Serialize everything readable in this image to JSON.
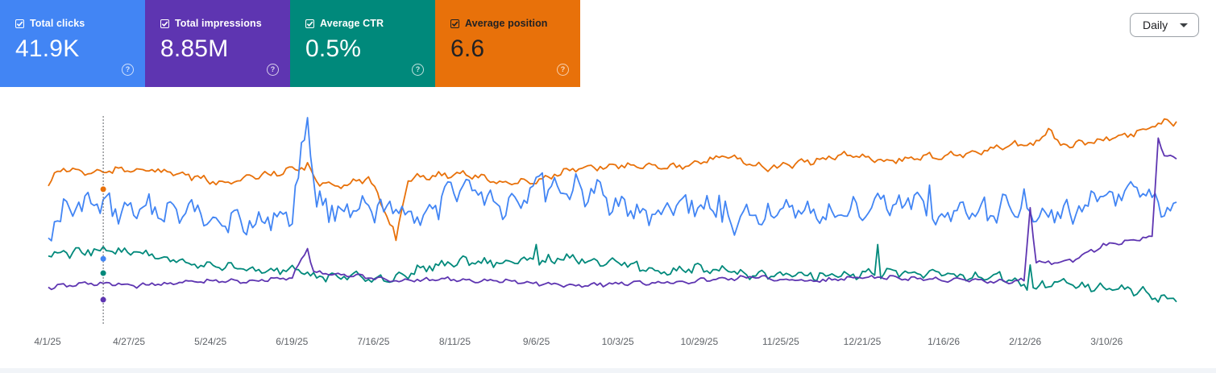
{
  "metrics": [
    {
      "label": "Total clicks",
      "value": "41.9K",
      "color": "#4285f4",
      "checked": true
    },
    {
      "label": "Total impressions",
      "value": "8.85M",
      "color": "#5e35b1",
      "checked": true
    },
    {
      "label": "Average CTR",
      "value": "0.5%",
      "color": "#00897b",
      "checked": true
    },
    {
      "label": "Average position",
      "value": "6.6",
      "color": "#e8710a",
      "checked": true
    }
  ],
  "help_glyph": "?",
  "period_dropdown": {
    "selected": "Daily"
  },
  "chart_data": {
    "type": "line",
    "x_tick_labels": [
      "4/1/25",
      "4/27/25",
      "5/24/25",
      "6/19/25",
      "7/16/25",
      "8/11/25",
      "9/6/25",
      "10/3/25",
      "10/29/25",
      "11/25/25",
      "12/21/25",
      "1/16/26",
      "2/12/26",
      "3/10/26"
    ],
    "x_range": [
      "4/1/25",
      "4/6/26"
    ],
    "hover_date": "4/14/25",
    "grid": false,
    "axes_labels_visible": false,
    "series": [
      {
        "name": "Total clicks",
        "color": "#4285f4",
        "anchors": [
          [
            0,
            0.55
          ],
          [
            6,
            0.45
          ],
          [
            14,
            0.42
          ],
          [
            25,
            0.46
          ],
          [
            35,
            0.45
          ],
          [
            50,
            0.47
          ],
          [
            65,
            0.52
          ],
          [
            80,
            0.47
          ],
          [
            85,
            0.0
          ],
          [
            88,
            0.42
          ],
          [
            100,
            0.47
          ],
          [
            110,
            0.45
          ],
          [
            125,
            0.48
          ],
          [
            135,
            0.32
          ],
          [
            150,
            0.43
          ],
          [
            160,
            0.33
          ],
          [
            170,
            0.35
          ],
          [
            182,
            0.38
          ],
          [
            192,
            0.46
          ],
          [
            200,
            0.48
          ],
          [
            210,
            0.42
          ],
          [
            225,
            0.5
          ],
          [
            236,
            0.47
          ],
          [
            245,
            0.45
          ],
          [
            255,
            0.48
          ],
          [
            270,
            0.45
          ],
          [
            283,
            0.4
          ],
          [
            290,
            0.5
          ],
          [
            300,
            0.47
          ],
          [
            315,
            0.45
          ],
          [
            320,
            0.42
          ],
          [
            330,
            0.48
          ],
          [
            345,
            0.4
          ],
          [
            360,
            0.38
          ],
          [
            370,
            0.47
          ]
        ],
        "spikes": [
          [
            85,
            0.0
          ],
          [
            133,
            0.37
          ],
          [
            162,
            0.27
          ],
          [
            220,
            0.38
          ],
          [
            274,
            0.38
          ],
          [
            289,
            0.33
          ],
          [
            336,
            0.52
          ]
        ]
      },
      {
        "name": "Total impressions",
        "color": "#5e35b1",
        "anchors": [
          [
            0,
            0.83
          ],
          [
            14,
            0.81
          ],
          [
            30,
            0.82
          ],
          [
            50,
            0.8
          ],
          [
            65,
            0.8
          ],
          [
            80,
            0.78
          ],
          [
            85,
            0.64
          ],
          [
            87,
            0.76
          ],
          [
            100,
            0.77
          ],
          [
            115,
            0.8
          ],
          [
            130,
            0.79
          ],
          [
            150,
            0.8
          ],
          [
            170,
            0.82
          ],
          [
            190,
            0.81
          ],
          [
            210,
            0.8
          ],
          [
            230,
            0.78
          ],
          [
            250,
            0.8
          ],
          [
            270,
            0.78
          ],
          [
            290,
            0.79
          ],
          [
            310,
            0.8
          ],
          [
            320,
            0.8
          ],
          [
            322,
            0.44
          ],
          [
            324,
            0.71
          ],
          [
            335,
            0.7
          ],
          [
            345,
            0.63
          ],
          [
            355,
            0.6
          ],
          [
            362,
            0.58
          ],
          [
            364,
            0.1
          ],
          [
            366,
            0.18
          ],
          [
            370,
            0.2
          ]
        ],
        "spikes": [
          [
            85,
            0.64
          ],
          [
            322,
            0.44
          ],
          [
            364,
            0.1
          ]
        ]
      },
      {
        "name": "Average CTR",
        "color": "#00897b",
        "anchors": [
          [
            0,
            0.67
          ],
          [
            14,
            0.65
          ],
          [
            30,
            0.66
          ],
          [
            50,
            0.72
          ],
          [
            65,
            0.74
          ],
          [
            80,
            0.75
          ],
          [
            88,
            0.78
          ],
          [
            100,
            0.77
          ],
          [
            112,
            0.8
          ],
          [
            122,
            0.74
          ],
          [
            135,
            0.7
          ],
          [
            150,
            0.71
          ],
          [
            170,
            0.69
          ],
          [
            185,
            0.7
          ],
          [
            200,
            0.75
          ],
          [
            215,
            0.74
          ],
          [
            235,
            0.77
          ],
          [
            255,
            0.77
          ],
          [
            275,
            0.76
          ],
          [
            295,
            0.77
          ],
          [
            315,
            0.78
          ],
          [
            322,
            0.84
          ],
          [
            330,
            0.8
          ],
          [
            345,
            0.83
          ],
          [
            360,
            0.85
          ],
          [
            362,
            0.88
          ],
          [
            370,
            0.88
          ]
        ],
        "spikes": [
          [
            160,
            0.62
          ],
          [
            272,
            0.62
          ],
          [
            322,
            0.72
          ]
        ]
      },
      {
        "name": "Average position",
        "color": "#e8710a",
        "anchors": [
          [
            0,
            0.33
          ],
          [
            4,
            0.25
          ],
          [
            14,
            0.27
          ],
          [
            30,
            0.25
          ],
          [
            45,
            0.28
          ],
          [
            55,
            0.32
          ],
          [
            65,
            0.3
          ],
          [
            75,
            0.27
          ],
          [
            85,
            0.24
          ],
          [
            88,
            0.32
          ],
          [
            95,
            0.33
          ],
          [
            105,
            0.3
          ],
          [
            110,
            0.44
          ],
          [
            114,
            0.58
          ],
          [
            118,
            0.3
          ],
          [
            135,
            0.27
          ],
          [
            150,
            0.32
          ],
          [
            160,
            0.31
          ],
          [
            170,
            0.26
          ],
          [
            190,
            0.23
          ],
          [
            210,
            0.24
          ],
          [
            222,
            0.18
          ],
          [
            235,
            0.25
          ],
          [
            248,
            0.22
          ],
          [
            262,
            0.18
          ],
          [
            275,
            0.21
          ],
          [
            290,
            0.19
          ],
          [
            305,
            0.17
          ],
          [
            318,
            0.13
          ],
          [
            325,
            0.13
          ],
          [
            328,
            0.05
          ],
          [
            332,
            0.14
          ],
          [
            345,
            0.11
          ],
          [
            355,
            0.08
          ],
          [
            360,
            0.06
          ],
          [
            362,
            0.03
          ],
          [
            370,
            0.02
          ]
        ],
        "spikes": [
          [
            85,
            0.22
          ],
          [
            114,
            0.6
          ]
        ]
      }
    ]
  }
}
